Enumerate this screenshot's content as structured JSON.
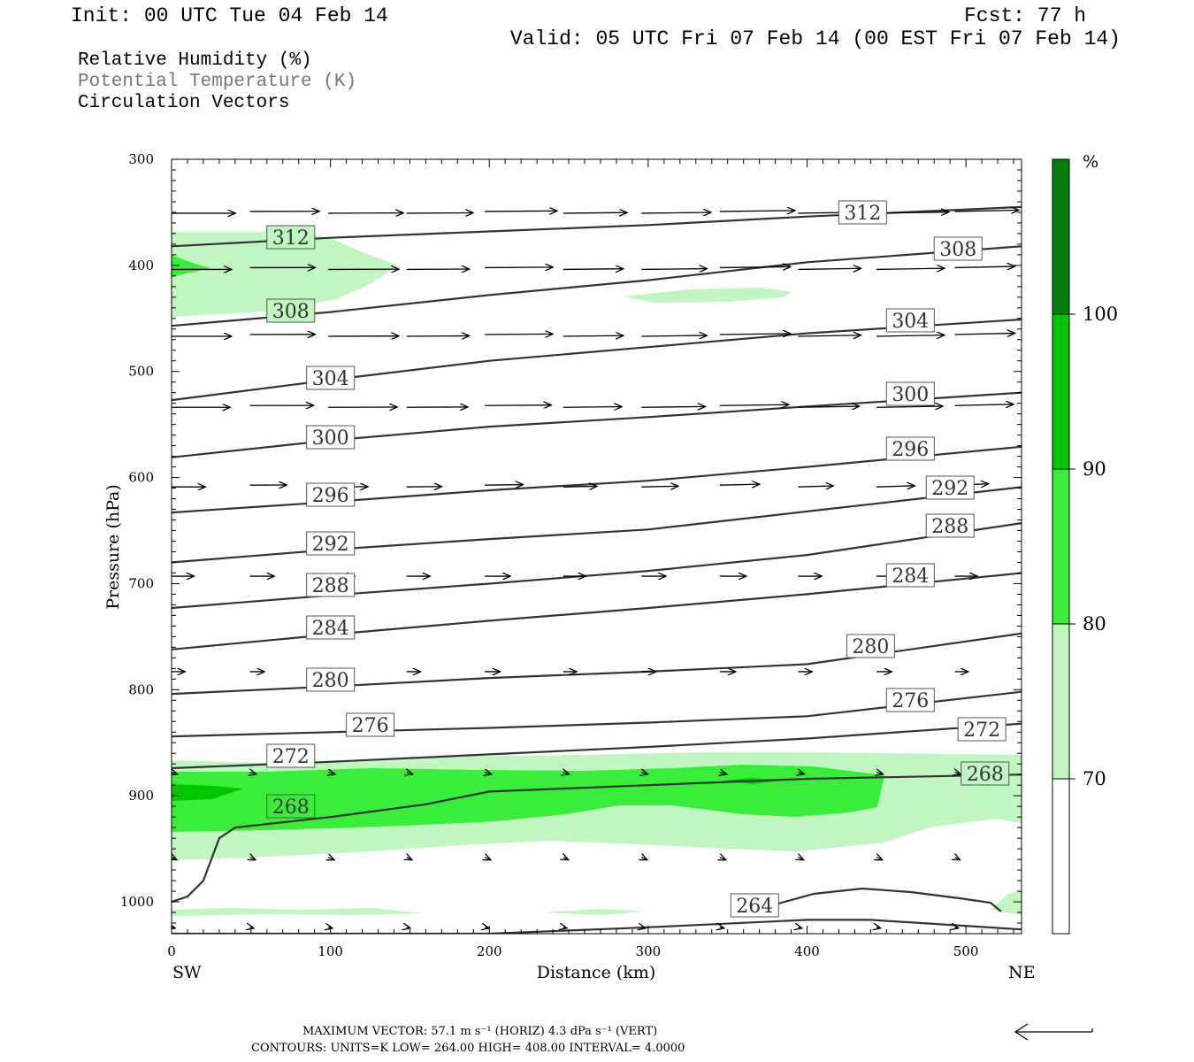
{
  "header": {
    "init": "Init: 00 UTC Tue 04 Feb 14",
    "fcst": "Fcst:   77 h",
    "valid": "Valid: 05 UTC Fri 07 Feb 14 (00 EST Fri 07 Feb 14)"
  },
  "legend": {
    "rh": "Relative Humidity (%)",
    "theta": "Potential Temperature (K)",
    "vectors": "Circulation Vectors"
  },
  "chart_data": {
    "type": "contour",
    "xlabel": "Distance (km)",
    "ylabel": "Pressure (hPa)",
    "xlim": [
      0,
      535
    ],
    "ylim": [
      300,
      1030
    ],
    "x_ticks": [
      0,
      100,
      200,
      300,
      400,
      500
    ],
    "y_ticks": [
      300,
      400,
      500,
      600,
      700,
      800,
      900,
      1000
    ],
    "x_end_labels": {
      "left": "SW",
      "right": "NE"
    },
    "colorbar": {
      "unit": "%",
      "levels": [
        70,
        80,
        90,
        100
      ],
      "colors": [
        "#ffffff",
        "#c0f6c0",
        "#38ee38",
        "#00c800",
        "#00800a"
      ]
    },
    "theta_contours": [
      {
        "level": 312,
        "label": "312",
        "points": [
          [
            0,
            382
          ],
          [
            100,
            374
          ],
          [
            200,
            368
          ],
          [
            300,
            362
          ],
          [
            400,
            354
          ],
          [
            535,
            345
          ]
        ]
      },
      {
        "level": 308,
        "label": "308",
        "points": [
          [
            0,
            457
          ],
          [
            100,
            444
          ],
          [
            200,
            428
          ],
          [
            300,
            414
          ],
          [
            400,
            397
          ],
          [
            535,
            382
          ]
        ]
      },
      {
        "level": 304,
        "label": "304",
        "points": [
          [
            0,
            527
          ],
          [
            100,
            508
          ],
          [
            200,
            490
          ],
          [
            300,
            477
          ],
          [
            400,
            464
          ],
          [
            535,
            451
          ]
        ]
      },
      {
        "level": 300,
        "label": "300",
        "points": [
          [
            0,
            581
          ],
          [
            100,
            565
          ],
          [
            200,
            552
          ],
          [
            300,
            543
          ],
          [
            400,
            533
          ],
          [
            535,
            520
          ]
        ]
      },
      {
        "level": 296,
        "label": "296",
        "points": [
          [
            0,
            633
          ],
          [
            100,
            623
          ],
          [
            200,
            612
          ],
          [
            300,
            603
          ],
          [
            400,
            590
          ],
          [
            535,
            571
          ]
        ]
      },
      {
        "level": 292,
        "label": "292",
        "points": [
          [
            0,
            680
          ],
          [
            100,
            668
          ],
          [
            200,
            658
          ],
          [
            300,
            649
          ],
          [
            400,
            632
          ],
          [
            535,
            609
          ]
        ]
      },
      {
        "level": 288,
        "label": "288",
        "points": [
          [
            0,
            723
          ],
          [
            100,
            711
          ],
          [
            200,
            700
          ],
          [
            300,
            688
          ],
          [
            400,
            673
          ],
          [
            535,
            643
          ]
        ]
      },
      {
        "level": 284,
        "label": "284",
        "points": [
          [
            0,
            762
          ],
          [
            100,
            748
          ],
          [
            200,
            735
          ],
          [
            300,
            723
          ],
          [
            400,
            710
          ],
          [
            535,
            690
          ]
        ]
      },
      {
        "level": 280,
        "label": "280",
        "points": [
          [
            0,
            804
          ],
          [
            100,
            797
          ],
          [
            200,
            789
          ],
          [
            300,
            783
          ],
          [
            400,
            776
          ],
          [
            535,
            747
          ]
        ]
      },
      {
        "level": 276,
        "label": "276",
        "points": [
          [
            0,
            844
          ],
          [
            100,
            840
          ],
          [
            200,
            836
          ],
          [
            300,
            831
          ],
          [
            400,
            825
          ],
          [
            535,
            802
          ]
        ]
      },
      {
        "level": 272,
        "label": "272",
        "points": [
          [
            0,
            874
          ],
          [
            100,
            868
          ],
          [
            200,
            861
          ],
          [
            300,
            854
          ],
          [
            400,
            846
          ],
          [
            535,
            832
          ]
        ]
      },
      {
        "level": 268,
        "label": "268",
        "points": [
          [
            0,
            1000
          ],
          [
            10,
            995
          ],
          [
            20,
            980
          ],
          [
            30,
            940
          ],
          [
            40,
            930
          ],
          [
            100,
            920
          ],
          [
            160,
            908
          ],
          [
            200,
            896
          ],
          [
            300,
            890
          ],
          [
            400,
            884
          ],
          [
            535,
            880
          ]
        ]
      },
      {
        "level": 264,
        "label": "264",
        "points": [
          [
            0,
            1030
          ],
          [
            200,
            1030
          ],
          [
            300,
            1024
          ],
          [
            400,
            1017
          ],
          [
            440,
            1017
          ],
          [
            535,
            1026
          ]
        ]
      }
    ],
    "vectors": {
      "max_horiz": "57.1",
      "max_vert": "4.3"
    }
  },
  "footer": {
    "max_vector_line": "MAXIMUM VECTOR:  57.1 m s⁻¹ (HORIZ)          4.3 dPa s⁻¹ (VERT)",
    "contours_line": "CONTOURS:  UNITS=K  LOW=  264.00       HIGH=  408.00       INTERVAL=    4.0000"
  }
}
